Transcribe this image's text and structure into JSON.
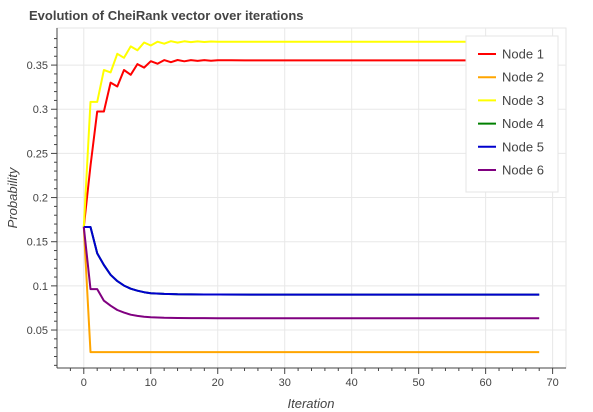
{
  "chart_data": {
    "type": "line",
    "title": "Evolution of CheiRank vector over iterations",
    "xlabel": "Iteration",
    "ylabel": "Probability",
    "xlim": [
      -4,
      72
    ],
    "ylim": [
      0.007,
      0.392
    ],
    "xticks": [
      0,
      10,
      20,
      30,
      40,
      50,
      60,
      70
    ],
    "yticks": [
      0.05,
      0.1,
      0.15,
      0.2,
      0.25,
      0.3,
      0.35
    ],
    "ytick_labels": [
      "0.05",
      "0.1",
      "0.15",
      "0.2",
      "0.25",
      "0.3",
      "0.35"
    ],
    "xtick_labels": [
      "0",
      "10",
      "20",
      "30",
      "40",
      "50",
      "60",
      "70"
    ],
    "grid": true,
    "legend_position": "top-right",
    "series": [
      {
        "name": "Node 1",
        "color": "#ff0000",
        "x": [
          0,
          1,
          2,
          3,
          4,
          5,
          6,
          7,
          8,
          9,
          10,
          11,
          12,
          13,
          14,
          15,
          16,
          17,
          18,
          19,
          20,
          22,
          24,
          26,
          28,
          30,
          68
        ],
        "y": [
          0.1667,
          0.2361,
          0.2975,
          0.2975,
          0.3302,
          0.3258,
          0.3444,
          0.339,
          0.3511,
          0.3472,
          0.3544,
          0.3516,
          0.3556,
          0.3533,
          0.3558,
          0.3543,
          0.3556,
          0.3547,
          0.3556,
          0.355,
          0.3555,
          0.3554,
          0.3553,
          0.3553,
          0.3553,
          0.3553,
          0.3553
        ]
      },
      {
        "name": "Node 2",
        "color": "#ffa500",
        "x": [
          0,
          1,
          68
        ],
        "y": [
          0.1667,
          0.025,
          0.025
        ]
      },
      {
        "name": "Node 3",
        "color": "#ffff00",
        "x": [
          0,
          1,
          2,
          3,
          4,
          5,
          6,
          7,
          8,
          9,
          10,
          11,
          12,
          13,
          14,
          15,
          16,
          17,
          18,
          19,
          20,
          22,
          24,
          26,
          28,
          30,
          68
        ],
        "y": [
          0.1667,
          0.3083,
          0.3083,
          0.3444,
          0.3417,
          0.3628,
          0.3583,
          0.3712,
          0.3667,
          0.3756,
          0.3722,
          0.3765,
          0.3742,
          0.377,
          0.3755,
          0.3769,
          0.376,
          0.3768,
          0.3762,
          0.3767,
          0.3765,
          0.3765,
          0.3765,
          0.3765,
          0.3765,
          0.3765,
          0.3765
        ]
      },
      {
        "name": "Node 4",
        "color": "#008000",
        "x": [
          0,
          1,
          2,
          3,
          4,
          5,
          6,
          7,
          8,
          9,
          10,
          12,
          14,
          16,
          18,
          20,
          25,
          30,
          68
        ],
        "y": [
          0.1667,
          0.1667,
          0.1369,
          0.1236,
          0.1125,
          0.1054,
          0.1003,
          0.0968,
          0.0945,
          0.0928,
          0.0917,
          0.0909,
          0.0905,
          0.0903,
          0.0902,
          0.0902,
          0.0901,
          0.0901,
          0.0901
        ]
      },
      {
        "name": "Node 5",
        "color": "#0000cd",
        "x": [
          0,
          1,
          2,
          3,
          4,
          5,
          6,
          7,
          8,
          9,
          10,
          12,
          14,
          16,
          18,
          20,
          25,
          30,
          68
        ],
        "y": [
          0.1667,
          0.1667,
          0.1369,
          0.1236,
          0.1125,
          0.1054,
          0.1003,
          0.0968,
          0.0945,
          0.0928,
          0.0917,
          0.0909,
          0.0905,
          0.0903,
          0.0902,
          0.0902,
          0.0901,
          0.0901,
          0.0901
        ]
      },
      {
        "name": "Node 6",
        "color": "#800080",
        "x": [
          0,
          1,
          2,
          3,
          4,
          5,
          6,
          7,
          8,
          9,
          10,
          12,
          14,
          16,
          18,
          20,
          25,
          30,
          68
        ],
        "y": [
          0.1667,
          0.0963,
          0.0963,
          0.0832,
          0.0776,
          0.0727,
          0.0697,
          0.0674,
          0.066,
          0.065,
          0.0644,
          0.0638,
          0.0636,
          0.0635,
          0.0635,
          0.0634,
          0.0634,
          0.0634,
          0.0634
        ]
      }
    ]
  }
}
